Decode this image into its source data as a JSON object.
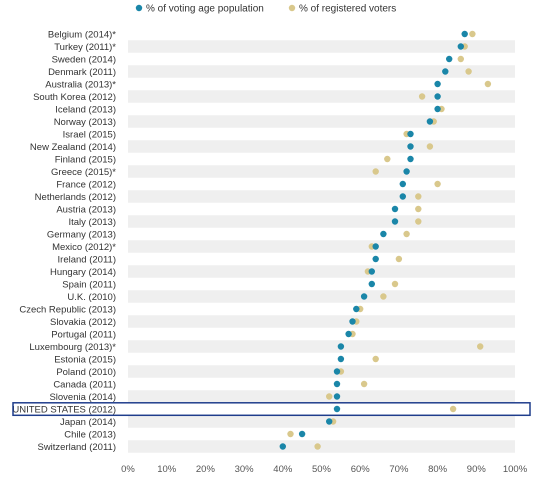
{
  "chart_data": {
    "type": "scatter",
    "title": "",
    "xlabel": "",
    "ylabel": "",
    "xlim": [
      0,
      100
    ],
    "x_ticks": [
      "0%",
      "10%",
      "20%",
      "30%",
      "40%",
      "50%",
      "60%",
      "70%",
      "80%",
      "90%",
      "100%"
    ],
    "grid": "alternating-row-bands",
    "legend_position": "top",
    "highlighted_category": "UNITED STATES (2012)",
    "colors": {
      "voting_age": "#1a86a8",
      "registered": "#d9c88c",
      "highlight_box": "#1f3d8c",
      "band": "#efefef"
    },
    "categories": [
      "Belgium (2014)*",
      "Turkey (2011)*",
      "Sweden (2014)",
      "Denmark (2011)",
      "Australia (2013)*",
      "South Korea (2012)",
      "Iceland (2013)",
      "Norway (2013)",
      "Israel (2015)",
      "New Zealand (2014)",
      "Finland (2015)",
      "Greece (2015)*",
      "France (2012)",
      "Netherlands (2012)",
      "Austria (2013)",
      "Italy (2013)",
      "Germany (2013)",
      "Mexico (2012)*",
      "Ireland (2011)",
      "Hungary (2014)",
      "Spain (2011)",
      "U.K. (2010)",
      "Czech Republic (2013)",
      "Slovakia (2012)",
      "Portugal (2011)",
      "Luxembourg (2013)*",
      "Estonia (2015)",
      "Poland (2010)",
      "Canada (2011)",
      "Slovenia (2014)",
      "UNITED STATES (2012)",
      "Japan (2014)",
      "Chile (2013)",
      "Switzerland (2011)"
    ],
    "series": [
      {
        "name": "% of voting age population",
        "values": [
          87,
          86,
          83,
          82,
          80,
          80,
          80,
          78,
          73,
          73,
          73,
          72,
          71,
          71,
          69,
          69,
          66,
          64,
          64,
          63,
          63,
          61,
          59,
          58,
          57,
          55,
          55,
          54,
          54,
          54,
          54,
          52,
          45,
          40
        ]
      },
      {
        "name": "% of registered voters",
        "values": [
          89,
          87,
          86,
          88,
          93,
          76,
          81,
          79,
          72,
          78,
          67,
          64,
          80,
          75,
          75,
          75,
          72,
          63,
          70,
          62,
          69,
          66,
          60,
          59,
          58,
          91,
          64,
          55,
          61,
          52,
          84,
          53,
          42,
          49
        ]
      }
    ]
  }
}
